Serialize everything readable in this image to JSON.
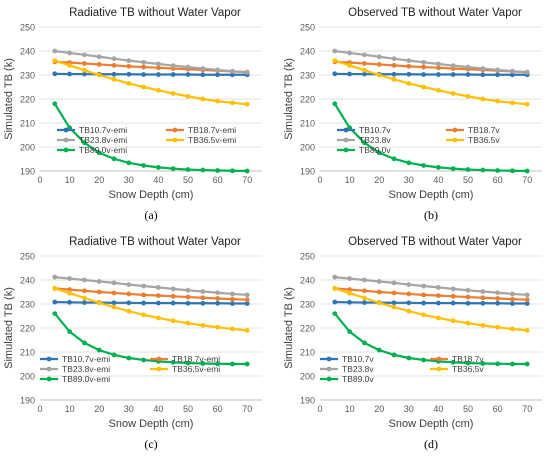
{
  "chart_data": [
    {
      "type": "line",
      "panel_label": "(a)",
      "title": "Radiative TB without Water Vapor",
      "xlabel": "Snow Depth (cm)",
      "ylabel": "Simulated TB (k)",
      "xlim": [
        0,
        75
      ],
      "ylim": [
        190,
        250
      ],
      "xticks": [
        0,
        10,
        20,
        30,
        40,
        50,
        60,
        70
      ],
      "yticks": [
        190,
        200,
        210,
        220,
        230,
        240,
        250
      ],
      "grid": true,
      "legend_position": "inside-bottom",
      "x": [
        5,
        10,
        15,
        20,
        25,
        30,
        35,
        40,
        45,
        50,
        55,
        60,
        65,
        70
      ],
      "series": [
        {
          "name": "TB10.7v-emi",
          "color": "#2E75B6",
          "values": [
            230.5,
            230.4,
            230.4,
            230.3,
            230.3,
            230.3,
            230.2,
            230.2,
            230.2,
            230.2,
            230.1,
            230.1,
            230.1,
            230.1
          ]
        },
        {
          "name": "TB18.7v-emi",
          "color": "#ED7D31",
          "values": [
            235.5,
            235.2,
            234.8,
            234.4,
            234.0,
            233.6,
            233.3,
            233.0,
            232.7,
            232.4,
            232.1,
            231.8,
            231.5,
            231.2
          ]
        },
        {
          "name": "TB23.8v-emi",
          "color": "#A5A5A5",
          "values": [
            240.0,
            239.2,
            238.4,
            237.6,
            236.8,
            236.0,
            235.3,
            234.6,
            233.9,
            233.3,
            232.7,
            232.1,
            231.6,
            231.1
          ]
        },
        {
          "name": "TB36.5v-emi",
          "color": "#FFC000",
          "values": [
            236.0,
            234.0,
            232.0,
            230.0,
            228.2,
            226.5,
            225.0,
            223.6,
            222.3,
            221.1,
            220.0,
            219.1,
            218.4,
            217.8
          ]
        },
        {
          "name": "TB89.0v-emi",
          "color": "#00B050",
          "values": [
            218.0,
            208.0,
            201.8,
            197.6,
            195.1,
            193.4,
            192.3,
            191.5,
            191.0,
            190.6,
            190.4,
            190.2,
            190.1,
            190.0
          ]
        }
      ]
    },
    {
      "type": "line",
      "panel_label": "(b)",
      "title": "Observed TB without Water Vapor",
      "xlabel": "Snow Depth (cm)",
      "ylabel": "Simulated TB (k)",
      "xlim": [
        0,
        75
      ],
      "ylim": [
        190,
        250
      ],
      "xticks": [
        0,
        10,
        20,
        30,
        40,
        50,
        60,
        70
      ],
      "yticks": [
        190,
        200,
        210,
        220,
        230,
        240,
        250
      ],
      "grid": true,
      "legend_position": "inside-bottom",
      "x": [
        5,
        10,
        15,
        20,
        25,
        30,
        35,
        40,
        45,
        50,
        55,
        60,
        65,
        70
      ],
      "series": [
        {
          "name": "TB10.7v",
          "color": "#2E75B6",
          "values": [
            230.5,
            230.4,
            230.4,
            230.3,
            230.3,
            230.3,
            230.2,
            230.2,
            230.2,
            230.2,
            230.1,
            230.1,
            230.1,
            230.1
          ]
        },
        {
          "name": "TB18.7v",
          "color": "#ED7D31",
          "values": [
            235.5,
            235.2,
            234.8,
            234.4,
            234.0,
            233.6,
            233.3,
            233.0,
            232.7,
            232.4,
            232.1,
            231.8,
            231.5,
            231.2
          ]
        },
        {
          "name": "TB23.8v",
          "color": "#A5A5A5",
          "values": [
            240.0,
            239.2,
            238.4,
            237.6,
            236.8,
            236.0,
            235.3,
            234.6,
            233.9,
            233.3,
            232.7,
            232.1,
            231.6,
            231.1
          ]
        },
        {
          "name": "TB36.5v",
          "color": "#FFC000",
          "values": [
            236.0,
            234.0,
            232.0,
            230.0,
            228.2,
            226.5,
            225.0,
            223.6,
            222.3,
            221.1,
            220.0,
            219.1,
            218.4,
            217.8
          ]
        },
        {
          "name": "TB89.0v",
          "color": "#00B050",
          "values": [
            218.0,
            208.0,
            201.8,
            197.6,
            195.1,
            193.4,
            192.3,
            191.5,
            191.0,
            190.6,
            190.4,
            190.2,
            190.1,
            190.0
          ]
        }
      ]
    },
    {
      "type": "line",
      "panel_label": "(c)",
      "title": "Radiative TB without Water Vapor",
      "xlabel": "Snow Depth (cm)",
      "ylabel": "Simulated TB (k)",
      "xlim": [
        0,
        75
      ],
      "ylim": [
        190,
        250
      ],
      "xticks": [
        0,
        10,
        20,
        30,
        40,
        50,
        60,
        70
      ],
      "yticks": [
        190,
        200,
        210,
        220,
        230,
        240,
        250
      ],
      "grid": true,
      "legend_position": "inside-bottom-left",
      "x": [
        5,
        10,
        15,
        20,
        25,
        30,
        35,
        40,
        45,
        50,
        55,
        60,
        65,
        70
      ],
      "series": [
        {
          "name": "TB10.7v-emi",
          "color": "#2E75B6",
          "values": [
            230.8,
            230.7,
            230.6,
            230.6,
            230.5,
            230.5,
            230.4,
            230.4,
            230.4,
            230.3,
            230.3,
            230.3,
            230.2,
            230.2
          ]
        },
        {
          "name": "TB18.7v-emi",
          "color": "#ED7D31",
          "values": [
            236.5,
            236.0,
            235.5,
            235.0,
            234.6,
            234.2,
            233.8,
            233.5,
            233.2,
            232.9,
            232.6,
            232.3,
            232.0,
            231.8
          ]
        },
        {
          "name": "TB23.8v-emi",
          "color": "#A5A5A5",
          "values": [
            241.2,
            240.6,
            240.0,
            239.4,
            238.8,
            238.1,
            237.5,
            236.9,
            236.3,
            235.7,
            235.2,
            234.7,
            234.2,
            233.8
          ]
        },
        {
          "name": "TB36.5v-emi",
          "color": "#FFC000",
          "values": [
            236.5,
            234.5,
            232.5,
            230.5,
            228.7,
            227.0,
            225.5,
            224.2,
            223.0,
            222.0,
            221.1,
            220.3,
            219.6,
            219.0
          ]
        },
        {
          "name": "TB89.0v-emi",
          "color": "#00B050",
          "values": [
            226.0,
            218.5,
            213.8,
            210.8,
            208.8,
            207.5,
            206.7,
            206.1,
            205.7,
            205.4,
            205.2,
            205.1,
            205.0,
            205.0
          ]
        }
      ]
    },
    {
      "type": "line",
      "panel_label": "(d)",
      "title": "Observed TB without Water Vapor",
      "xlabel": "Snow Depth (cm)",
      "ylabel": "Simulated TB (k)",
      "xlim": [
        0,
        75
      ],
      "ylim": [
        190,
        250
      ],
      "xticks": [
        0,
        10,
        20,
        30,
        40,
        50,
        60,
        70
      ],
      "yticks": [
        190,
        200,
        210,
        220,
        230,
        240,
        250
      ],
      "grid": true,
      "legend_position": "inside-bottom-left",
      "x": [
        5,
        10,
        15,
        20,
        25,
        30,
        35,
        40,
        45,
        50,
        55,
        60,
        65,
        70
      ],
      "series": [
        {
          "name": "TB10.7v",
          "color": "#2E75B6",
          "values": [
            230.8,
            230.7,
            230.6,
            230.6,
            230.5,
            230.5,
            230.4,
            230.4,
            230.4,
            230.3,
            230.3,
            230.3,
            230.2,
            230.2
          ]
        },
        {
          "name": "TB18.7v",
          "color": "#ED7D31",
          "values": [
            236.5,
            236.0,
            235.5,
            235.0,
            234.6,
            234.2,
            233.8,
            233.5,
            233.2,
            232.9,
            232.6,
            232.3,
            232.0,
            231.8
          ]
        },
        {
          "name": "TB23.8v",
          "color": "#A5A5A5",
          "values": [
            241.2,
            240.6,
            240.0,
            239.4,
            238.8,
            238.1,
            237.5,
            236.9,
            236.3,
            235.7,
            235.2,
            234.7,
            234.2,
            233.8
          ]
        },
        {
          "name": "TB36.5v",
          "color": "#FFC000",
          "values": [
            236.5,
            234.5,
            232.5,
            230.5,
            228.7,
            227.0,
            225.5,
            224.2,
            223.0,
            222.0,
            221.1,
            220.3,
            219.6,
            219.0
          ]
        },
        {
          "name": "TB89.0v",
          "color": "#00B050",
          "values": [
            226.0,
            218.5,
            213.8,
            210.8,
            208.8,
            207.5,
            206.7,
            206.1,
            205.7,
            205.4,
            205.2,
            205.1,
            205.0,
            205.0
          ]
        }
      ]
    }
  ]
}
